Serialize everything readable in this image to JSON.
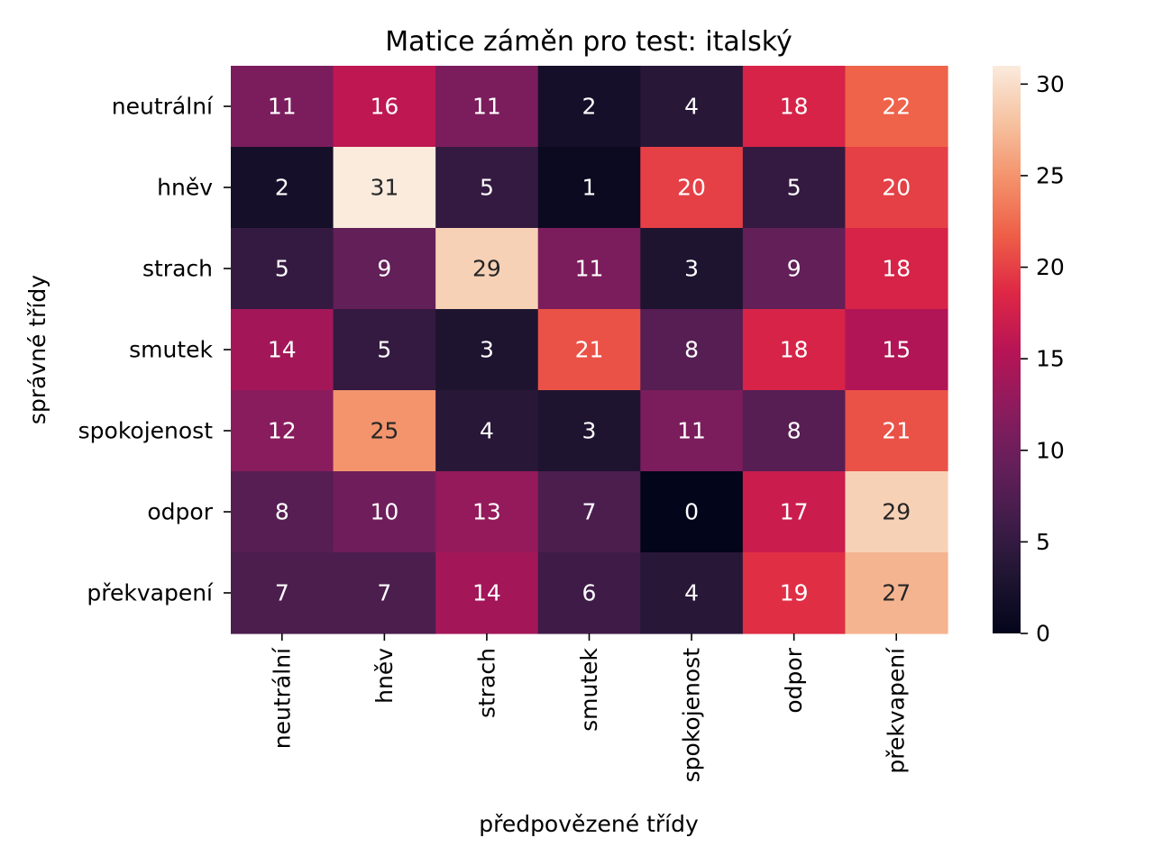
{
  "chart_data": {
    "type": "heatmap",
    "title": "Matice záměn pro test: italský",
    "xlabel": "předpovězené třídy",
    "ylabel": "správné třídy",
    "x_categories": [
      "neutrální",
      "hněv",
      "strach",
      "smutek",
      "spokojenost",
      "odpor",
      "překvapení"
    ],
    "y_categories": [
      "neutrální",
      "hněv",
      "strach",
      "smutek",
      "spokojenost",
      "odpor",
      "překvapení"
    ],
    "values": [
      [
        11,
        16,
        11,
        2,
        4,
        18,
        22
      ],
      [
        2,
        31,
        5,
        1,
        20,
        5,
        20
      ],
      [
        5,
        9,
        29,
        11,
        3,
        9,
        18
      ],
      [
        14,
        5,
        3,
        21,
        8,
        18,
        15
      ],
      [
        12,
        25,
        4,
        3,
        11,
        8,
        21
      ],
      [
        8,
        10,
        13,
        7,
        0,
        17,
        29
      ],
      [
        7,
        7,
        14,
        6,
        4,
        19,
        27
      ]
    ],
    "vmin": 0,
    "vmax": 31,
    "colormap": "rocket",
    "colorbar_ticks": [
      0,
      5,
      10,
      15,
      20,
      25,
      30
    ],
    "grid": false,
    "annotations": true
  }
}
